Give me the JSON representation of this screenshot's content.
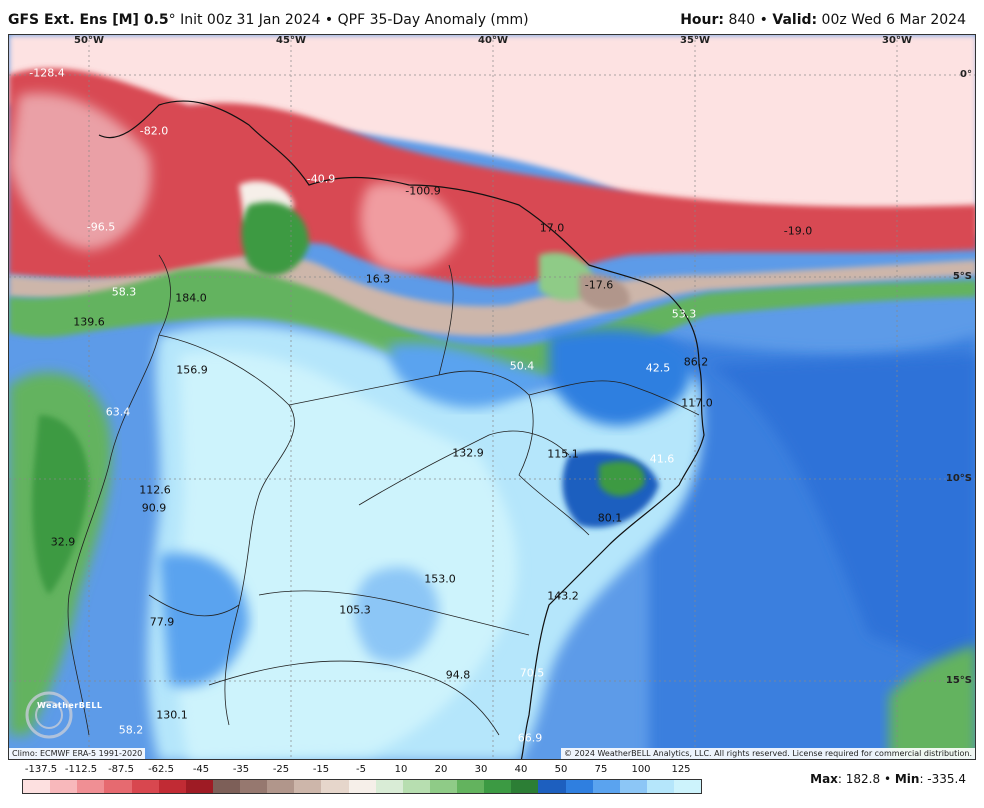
{
  "header": {
    "model": "GFS Ext.  Ens [M] 0.5",
    "degree": "°",
    "init": " Init 00z 31 Jan 2024",
    "bullet": " • ",
    "product": "QPF 35-Day Anomaly (mm)",
    "hour_label": "Hour:",
    "hour_value": " 840",
    "valid_label": "Valid:",
    "valid_value": " 00z Wed 6 Mar 2024"
  },
  "axes": {
    "longitudes": [
      "50°W",
      "45°W",
      "40°W",
      "35°W",
      "30°W"
    ],
    "latitudes": [
      "0°",
      "5°S",
      "10°S",
      "15°S"
    ]
  },
  "values": [
    {
      "text": "-128.4",
      "c": "white"
    },
    {
      "text": "-82.0",
      "c": "white"
    },
    {
      "text": "-40.9",
      "c": "white"
    },
    {
      "text": "-100.9",
      "c": "dark"
    },
    {
      "text": "-96.5",
      "c": "white"
    },
    {
      "text": "17.0",
      "c": "dark"
    },
    {
      "text": "-19.0",
      "c": "dark"
    },
    {
      "text": "-17.6",
      "c": "dark"
    },
    {
      "text": "16.3",
      "c": "dark"
    },
    {
      "text": "58.3",
      "c": "white"
    },
    {
      "text": "184.0",
      "c": "dark"
    },
    {
      "text": "139.6",
      "c": "dark"
    },
    {
      "text": "53.3",
      "c": "white"
    },
    {
      "text": "50.4",
      "c": "white"
    },
    {
      "text": "42.5",
      "c": "white"
    },
    {
      "text": "86.2",
      "c": "dark"
    },
    {
      "text": "156.9",
      "c": "dark"
    },
    {
      "text": "117.0",
      "c": "dark"
    },
    {
      "text": "63.4",
      "c": "white"
    },
    {
      "text": "132.9",
      "c": "dark"
    },
    {
      "text": "115.1",
      "c": "dark"
    },
    {
      "text": "41.6",
      "c": "white"
    },
    {
      "text": "112.6",
      "c": "dark"
    },
    {
      "text": "90.9",
      "c": "dark"
    },
    {
      "text": "80.1",
      "c": "dark"
    },
    {
      "text": "32.9",
      "c": "dark"
    },
    {
      "text": "153.0",
      "c": "dark"
    },
    {
      "text": "143.2",
      "c": "dark"
    },
    {
      "text": "105.3",
      "c": "dark"
    },
    {
      "text": "77.9",
      "c": "dark"
    },
    {
      "text": "94.8",
      "c": "dark"
    },
    {
      "text": "70.5",
      "c": "white"
    },
    {
      "text": "130.1",
      "c": "dark"
    },
    {
      "text": "58.2",
      "c": "white"
    },
    {
      "text": "66.9",
      "c": "white"
    }
  ],
  "credits": {
    "climo": "Climo: ECMWF ERA-5 1991-2020",
    "copyright": "© 2024 WeatherBELL Analytics, LLC. All rights reserved. License required for commercial distribution.",
    "logo": "WeatherBELL"
  },
  "legend": {
    "ticks": [
      "-137.5",
      "-112.5",
      "-87.5",
      "-62.5",
      "-45",
      "-35",
      "-25",
      "-15",
      "-5",
      "10",
      "20",
      "30",
      "40",
      "50",
      "75",
      "100",
      "125"
    ],
    "colors": [
      "#fde0e0",
      "#f8b8bb",
      "#f08f94",
      "#e66a70",
      "#d8474f",
      "#c12b34",
      "#9e1b24",
      "#7d5f58",
      "#96786f",
      "#b1968b",
      "#cdb6aa",
      "#e6d6cb",
      "#f6efe9",
      "#d9ecd6",
      "#b7deb0",
      "#8fcb87",
      "#63b35e",
      "#3c9a43",
      "#2c7e35",
      "#1d5fbf",
      "#2f7fe0",
      "#5aa3ef",
      "#8cc6f6",
      "#b5e6fb",
      "#cdf3fc"
    ]
  },
  "stats": {
    "max_label": "Max",
    "max_value": ": 182.8",
    "bullet": " • ",
    "min_label": "Min",
    "min_value": ": -335.4"
  }
}
